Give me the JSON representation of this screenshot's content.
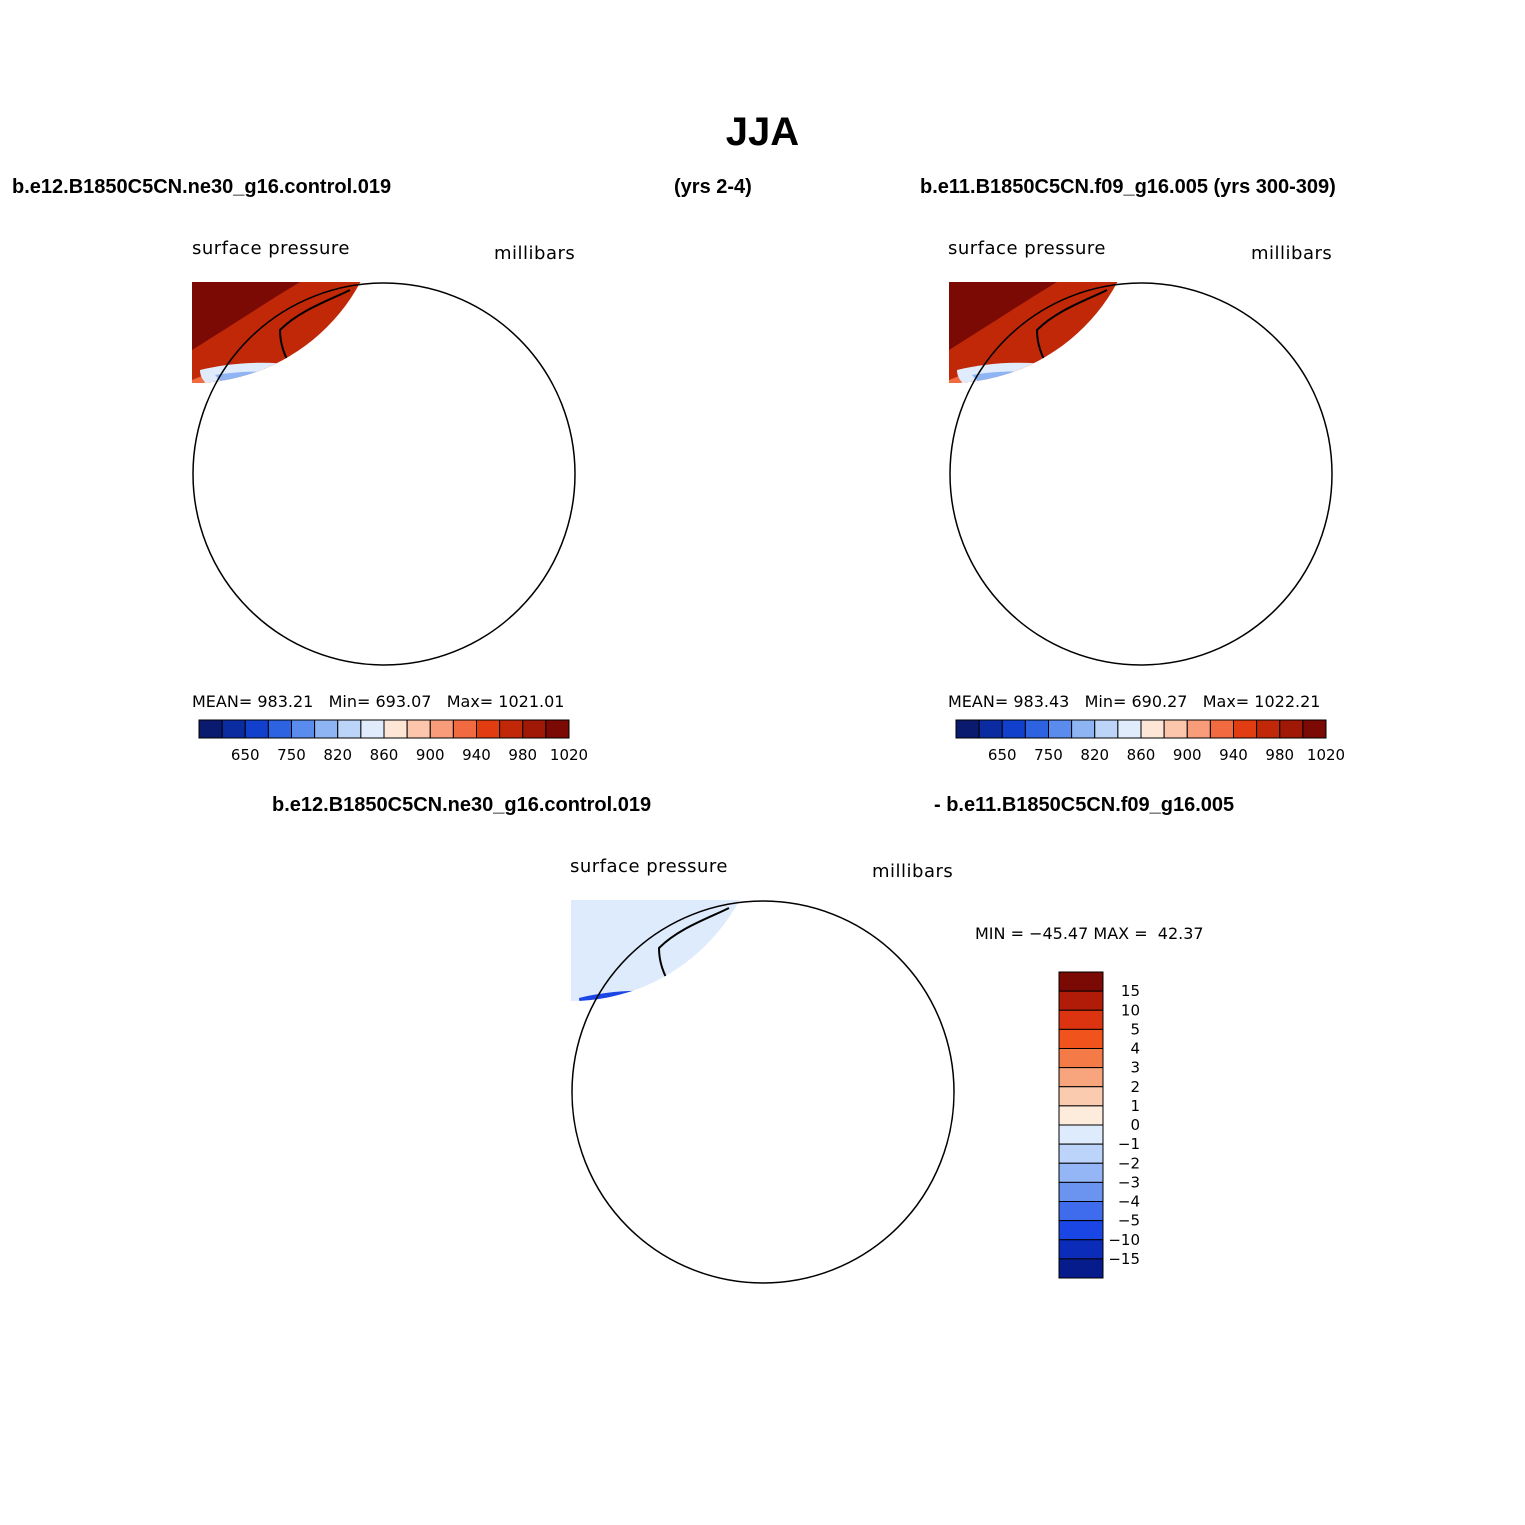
{
  "title": "JJA",
  "headers": {
    "case1": "b.e12.B1850C5CN.ne30_g16.control.019",
    "case1_years": "(yrs 2-4)",
    "case2": "b.e11.B1850C5CN.f09_g16.005 (yrs 300-309)",
    "diff_left": "b.e12.B1850C5CN.ne30_g16.control.019",
    "diff_right": "- b.e11.B1850C5CN.f09_g16.005"
  },
  "colors": {
    "abs_palette": [
      "#0a1a6e",
      "#0a2ca0",
      "#1040cc",
      "#2d62e0",
      "#5a8cee",
      "#8eb4f4",
      "#bcd4f8",
      "#e0ecfc",
      "#fde6d6",
      "#fbc6ac",
      "#f89c7a",
      "#f26a40",
      "#e23c12",
      "#c02808",
      "#a01806",
      "#7c0a04"
    ],
    "diff_palette": [
      "#7c0a04",
      "#b01c08",
      "#dc3410",
      "#f0541c",
      "#f47a48",
      "#f8a47c",
      "#fbcbb0",
      "#fdebdc",
      "#deebfc",
      "#bcd3fa",
      "#94b6f6",
      "#6a94f0",
      "#3f6cec",
      "#1a46e6",
      "#0a2cb8",
      "#061c8c"
    ]
  },
  "panels": [
    {
      "id": "case1",
      "variable": "surface pressure",
      "units": "millibars",
      "stats": {
        "mean_label": "MEAN=",
        "mean": "983.21",
        "min_label": "Min=",
        "min": "693.07",
        "max_label": "Max=",
        "max": "1021.01"
      },
      "colorbar_ticks": [
        "650",
        "750",
        "820",
        "860",
        "900",
        "940",
        "980",
        "1020"
      ]
    },
    {
      "id": "case2",
      "variable": "surface pressure",
      "units": "millibars",
      "stats": {
        "mean_label": "MEAN=",
        "mean": "983.43",
        "min_label": "Min=",
        "min": "690.27",
        "max_label": "Max=",
        "max": "1022.21"
      },
      "colorbar_ticks": [
        "650",
        "750",
        "820",
        "860",
        "900",
        "940",
        "980",
        "1020"
      ]
    },
    {
      "id": "diff",
      "variable": "surface pressure",
      "units": "millibars",
      "stats": {
        "min_label": "MIN =",
        "min": "−45.47",
        "max_label": "MAX =",
        "max": "42.37"
      },
      "colorbar_ticks": [
        "15",
        "10",
        "5",
        "4",
        "3",
        "2",
        "1",
        "0",
        "−1",
        "−2",
        "−3",
        "−4",
        "−5",
        "−10",
        "−15"
      ]
    }
  ]
}
